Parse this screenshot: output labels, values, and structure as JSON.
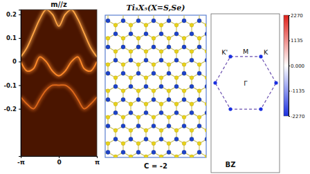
{
  "chart_data": [
    {
      "type": "line",
      "title": "m//z",
      "x": [
        -3.1416,
        -2.618,
        -2.0944,
        -1.5708,
        -1.0472,
        -0.5236,
        0,
        0.5236,
        1.0472,
        1.5708,
        2.0944,
        2.618,
        3.1416
      ],
      "series": [
        {
          "color": "#ffa646",
          "values": [
            0.02,
            0.06,
            0.12,
            0.18,
            0.22,
            0.2,
            0.15,
            0.2,
            0.22,
            0.18,
            0.12,
            0.06,
            0.02
          ]
        },
        {
          "color": "#ff8a2a",
          "values": [
            0.0,
            -0.04,
            -0.03,
            0.02,
            0.0,
            -0.04,
            -0.06,
            -0.04,
            0.0,
            0.02,
            -0.03,
            -0.04,
            0.0
          ]
        },
        {
          "color": "#e06a1c",
          "values": [
            -0.15,
            -0.18,
            -0.2,
            -0.16,
            -0.12,
            -0.1,
            -0.1,
            -0.1,
            -0.12,
            -0.16,
            -0.2,
            -0.18,
            -0.15
          ]
        }
      ],
      "xlim": [
        -3.1416,
        3.1416
      ],
      "xticks": [
        {
          "value": -3.1416,
          "label": "-π"
        },
        0,
        {
          "value": 3.1416,
          "label": "π"
        }
      ],
      "ylim": [
        -0.4,
        0.22
      ],
      "yticks": [
        -0.2,
        -0.1,
        0,
        0.1,
        0.2
      ]
    },
    {
      "type": "heatmap",
      "title": "BZ",
      "labels": [
        "M",
        "K'",
        "K",
        "Γ"
      ],
      "values": [
        -2270,
        -2270,
        -2270,
        -2270,
        -2270,
        -2270
      ],
      "colorbar_range": [
        -2270,
        2270
      ],
      "colorbar_ticks": [
        -2270,
        -1135,
        {
          "value": 0,
          "label": "0.000"
        },
        1135,
        2270
      ]
    }
  ],
  "structure": {
    "title": "Ti₃X₅(X=S,Se)",
    "caption": "C = -2"
  }
}
